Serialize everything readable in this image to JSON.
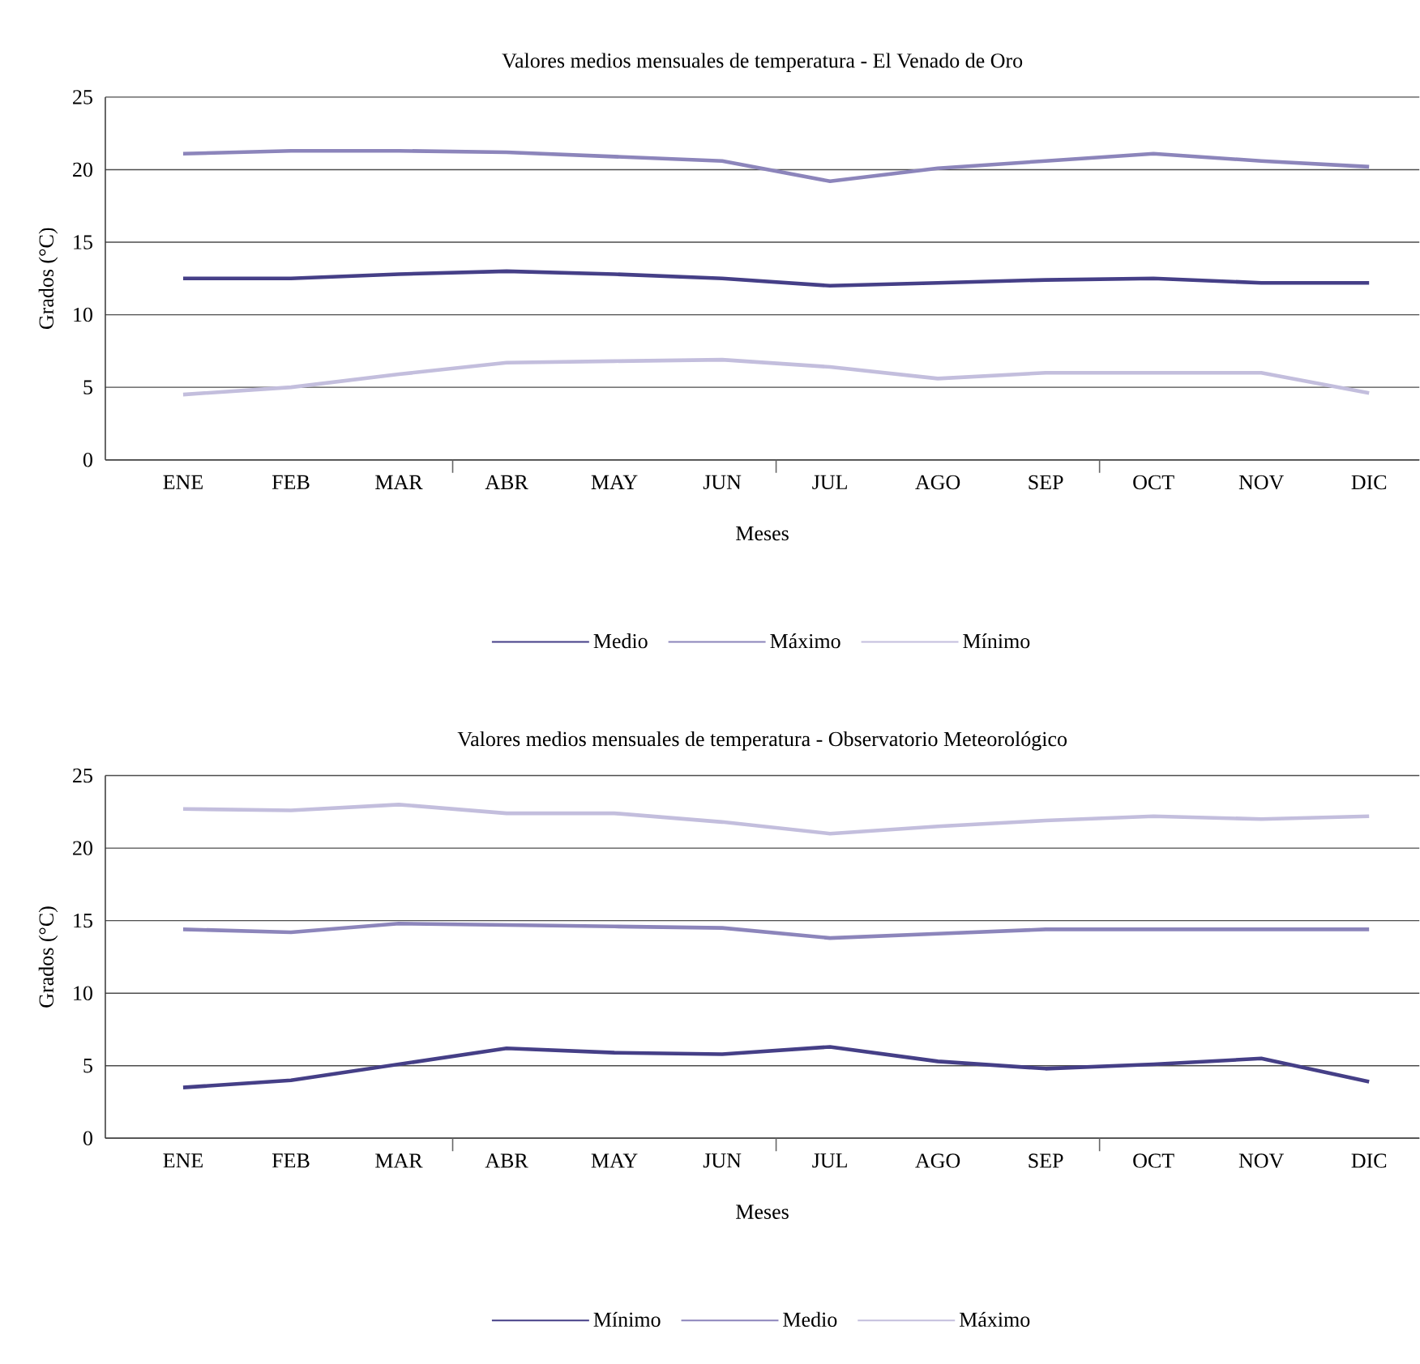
{
  "chart_data": [
    {
      "type": "line",
      "title": "Valores medios mensuales de temperatura - El Venado de Oro",
      "xlabel": "Meses",
      "ylabel": "Grados (°C)",
      "categories": [
        "ENE",
        "FEB",
        "MAR",
        "ABR",
        "MAY",
        "JUN",
        "JUL",
        "AGO",
        "SEP",
        "OCT",
        "NOV",
        "DIC"
      ],
      "series": [
        {
          "name": "Medio",
          "color": "#453f87",
          "values": [
            12.5,
            12.5,
            12.8,
            13.0,
            12.8,
            12.5,
            12.0,
            12.2,
            12.4,
            12.5,
            12.2,
            12.2
          ]
        },
        {
          "name": "Máximo",
          "color": "#8c85bb",
          "values": [
            21.1,
            21.3,
            21.3,
            21.2,
            20.9,
            20.6,
            19.2,
            20.1,
            20.6,
            21.1,
            20.6,
            20.2
          ]
        },
        {
          "name": "Mínimo",
          "color": "#c3bedd",
          "values": [
            4.5,
            5.0,
            5.9,
            6.7,
            6.8,
            6.9,
            6.4,
            5.6,
            6.0,
            6.0,
            6.0,
            4.6
          ]
        }
      ],
      "ylim": [
        0,
        25
      ],
      "yticks": [
        0,
        5,
        10,
        15,
        20,
        25
      ],
      "grid": "y",
      "legend": "bottom"
    },
    {
      "type": "line",
      "title": "Valores medios mensuales de temperatura - Observatorio Meteorológico",
      "xlabel": "Meses",
      "ylabel": "Grados (°C)",
      "categories": [
        "ENE",
        "FEB",
        "MAR",
        "ABR",
        "MAY",
        "JUN",
        "JUL",
        "AGO",
        "SEP",
        "OCT",
        "NOV",
        "DIC"
      ],
      "series": [
        {
          "name": "Mínimo",
          "color": "#453f87",
          "values": [
            3.5,
            4.0,
            5.1,
            6.2,
            5.9,
            5.8,
            6.3,
            5.3,
            4.8,
            5.1,
            5.5,
            3.9
          ]
        },
        {
          "name": "Medio",
          "color": "#8c85bb",
          "values": [
            14.4,
            14.2,
            14.8,
            14.7,
            14.6,
            14.5,
            13.8,
            14.1,
            14.4,
            14.4,
            14.4,
            14.4
          ]
        },
        {
          "name": "Máximo",
          "color": "#c3bedd",
          "values": [
            22.7,
            22.6,
            23.0,
            22.4,
            22.4,
            21.8,
            21.0,
            21.5,
            21.9,
            22.2,
            22.0,
            22.2
          ]
        }
      ],
      "ylim": [
        0,
        25
      ],
      "yticks": [
        0,
        5,
        10,
        15,
        20,
        25
      ],
      "grid": "y",
      "legend": "bottom"
    }
  ]
}
